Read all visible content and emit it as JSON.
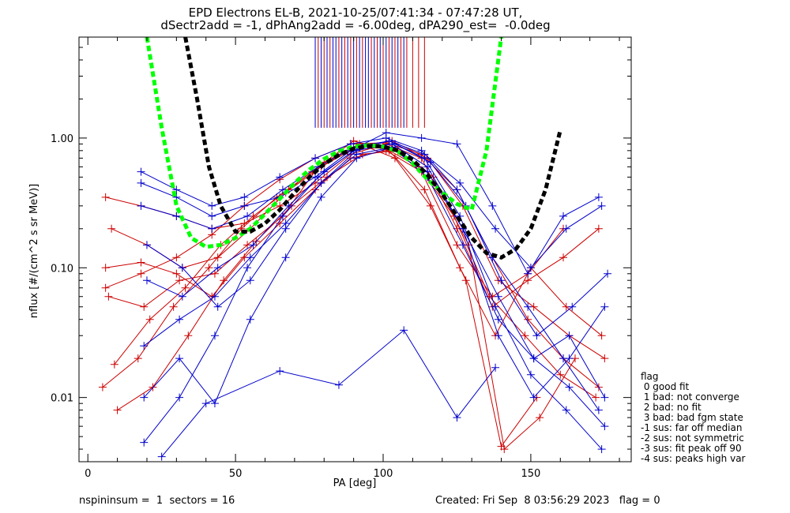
{
  "title_line1": "EPD Electrons EL-B, 2021-10-25/07:41:34 - 07:47:28 UT,",
  "title_line2": "dSectr2add = -1, dPhAng2add = -6.00deg, dPA290_est=  -0.0deg",
  "legend": {
    "title": "flag",
    "items": [
      " 0 good fit",
      " 1 bad: not converge",
      " 2 bad: no fit",
      " 3 bad: bad fgm state",
      "-1 sus: far off median",
      "-2 sus: not symmetric",
      "-3 sus: fit peak off 90",
      "-4 sus: peaks high var"
    ]
  },
  "footer": {
    "left": "nspininsum =  1  sectors = 16",
    "right": "Created: Fri Sep  8 03:56:29 2023   flag = 0"
  },
  "colors": {
    "series_red": "#cc0000",
    "series_blue": "#0000cc",
    "fit_green": "#00ff00",
    "fit_black": "#000000"
  },
  "chart_data": {
    "type": "line",
    "xlabel": "PA [deg]",
    "ylabel": "nflux [#/(cm^2 s sr MeV)]",
    "xlim": [
      -3,
      184
    ],
    "ylim": [
      0.0032,
      6.0
    ],
    "ylog": true,
    "xticks": [
      0,
      50,
      100,
      150
    ],
    "yticks": [
      0.01,
      0.1,
      1.0
    ],
    "ytick_labels": [
      "0.01",
      "0.10",
      "1.00"
    ],
    "grid": false,
    "legend_position": "right",
    "vertical_markers": {
      "blue": [
        77,
        79,
        81,
        83,
        84,
        86,
        88,
        90,
        92,
        94,
        95,
        97,
        99,
        101,
        103,
        105,
        107
      ],
      "red": [
        78,
        80,
        82,
        85,
        87,
        89,
        91,
        93,
        96,
        98,
        100,
        102,
        104,
        106,
        108,
        110,
        112,
        114
      ],
      "y_from": 1.2,
      "y_to": 6.0
    },
    "fits": [
      {
        "color": "green",
        "style": "dashed",
        "x": [
          20,
          25,
          30,
          35,
          40,
          45,
          50,
          55,
          60,
          65,
          70,
          75,
          80,
          85,
          90,
          95,
          100,
          105,
          110,
          115,
          120,
          125,
          130,
          135,
          140
        ],
        "y": [
          6.0,
          1.2,
          0.3,
          0.17,
          0.145,
          0.15,
          0.17,
          0.2,
          0.26,
          0.34,
          0.45,
          0.57,
          0.69,
          0.79,
          0.86,
          0.88,
          0.86,
          0.79,
          0.64,
          0.48,
          0.38,
          0.31,
          0.28,
          0.8,
          6.0
        ]
      },
      {
        "color": "black",
        "style": "dashed",
        "x": [
          33,
          37,
          41,
          45,
          50,
          55,
          60,
          65,
          70,
          75,
          80,
          85,
          90,
          95,
          100,
          105,
          110,
          115,
          120,
          125,
          130,
          135,
          140,
          145,
          150,
          155,
          160
        ],
        "y": [
          6.0,
          2.0,
          0.6,
          0.3,
          0.19,
          0.19,
          0.22,
          0.28,
          0.38,
          0.5,
          0.63,
          0.74,
          0.83,
          0.87,
          0.86,
          0.8,
          0.68,
          0.52,
          0.37,
          0.25,
          0.17,
          0.13,
          0.12,
          0.14,
          0.2,
          0.4,
          1.15
        ]
      }
    ],
    "series": [
      {
        "color": "red",
        "x": [
          6,
          18,
          30,
          42,
          53,
          65,
          77,
          89,
          101,
          113,
          125,
          137,
          149,
          161,
          173
        ],
        "y": [
          0.07,
          0.09,
          0.12,
          0.18,
          0.3,
          0.48,
          0.7,
          0.9,
          0.92,
          0.75,
          0.4,
          0.12,
          0.04,
          0.02,
          0.012
        ]
      },
      {
        "color": "red",
        "x": [
          8,
          20,
          32,
          44,
          55,
          67,
          79,
          91,
          103,
          115,
          127,
          139,
          151,
          163,
          175
        ],
        "y": [
          0.2,
          0.15,
          0.1,
          0.12,
          0.2,
          0.38,
          0.6,
          0.85,
          0.95,
          0.7,
          0.3,
          0.08,
          0.05,
          0.03,
          0.02
        ]
      },
      {
        "color": "red",
        "x": [
          5,
          17,
          29,
          41,
          52,
          64,
          76,
          88,
          100,
          112,
          124,
          136,
          148,
          160,
          172
        ],
        "y": [
          0.012,
          0.02,
          0.05,
          0.1,
          0.2,
          0.35,
          0.55,
          0.8,
          0.85,
          0.6,
          0.25,
          0.06,
          0.03,
          0.015,
          0.01
        ]
      },
      {
        "color": "red",
        "x": [
          10,
          22,
          34,
          46,
          57,
          69,
          81,
          93,
          105,
          117,
          129,
          141,
          153,
          165
        ],
        "y": [
          0.008,
          0.012,
          0.03,
          0.08,
          0.16,
          0.3,
          0.5,
          0.75,
          0.8,
          0.5,
          0.15,
          0.004,
          0.007,
          0.02
        ]
      },
      {
        "color": "red",
        "x": [
          6,
          18,
          30,
          42,
          53,
          65,
          77,
          89,
          101,
          113,
          125,
          137,
          149,
          161,
          173
        ],
        "y": [
          0.35,
          0.3,
          0.25,
          0.2,
          0.22,
          0.3,
          0.45,
          0.75,
          0.9,
          0.7,
          0.2,
          0.05,
          0.08,
          0.12,
          0.2
        ]
      },
      {
        "color": "red",
        "x": [
          7,
          19,
          31,
          43,
          54,
          66,
          78,
          90,
          102,
          114,
          126,
          138,
          150,
          162,
          174
        ],
        "y": [
          0.06,
          0.05,
          0.08,
          0.09,
          0.15,
          0.25,
          0.6,
          0.95,
          0.8,
          0.4,
          0.1,
          0.03,
          0.1,
          0.05,
          0.03
        ]
      },
      {
        "color": "red",
        "x": [
          9,
          21,
          33,
          45,
          56,
          68,
          80,
          92,
          104,
          116,
          128,
          140,
          152
        ],
        "y": [
          0.018,
          0.04,
          0.07,
          0.15,
          0.25,
          0.4,
          0.65,
          0.9,
          0.7,
          0.3,
          0.08,
          0.0042,
          0.01
        ]
      },
      {
        "color": "red",
        "x": [
          6,
          18,
          30,
          42,
          53,
          65,
          77,
          89,
          101,
          113,
          125,
          137,
          149,
          161
        ],
        "y": [
          0.1,
          0.11,
          0.09,
          0.06,
          0.12,
          0.22,
          0.4,
          0.7,
          0.8,
          0.55,
          0.15,
          0.06,
          0.09,
          0.2
        ]
      },
      {
        "color": "blue",
        "x": [
          18,
          30,
          42,
          53,
          65,
          77,
          89,
          101,
          113,
          125,
          137,
          149,
          161,
          173
        ],
        "y": [
          0.55,
          0.4,
          0.3,
          0.35,
          0.5,
          0.7,
          0.9,
          1.0,
          0.8,
          0.4,
          0.12,
          0.05,
          0.02,
          0.008
        ]
      },
      {
        "color": "blue",
        "x": [
          19,
          31,
          43,
          54,
          66,
          78,
          90,
          102,
          114,
          126,
          138,
          150,
          162,
          174
        ],
        "y": [
          0.0045,
          0.01,
          0.03,
          0.1,
          0.25,
          0.5,
          0.8,
          0.95,
          0.7,
          0.25,
          0.05,
          0.015,
          0.008,
          0.004
        ]
      },
      {
        "color": "blue",
        "x": [
          20,
          32,
          44,
          55,
          67,
          79,
          91,
          103,
          115,
          127,
          139,
          151,
          163,
          175
        ],
        "y": [
          0.15,
          0.1,
          0.05,
          0.08,
          0.2,
          0.45,
          0.8,
          0.9,
          0.6,
          0.2,
          0.03,
          0.01,
          0.02,
          0.05
        ]
      },
      {
        "color": "blue",
        "x": [
          18,
          30,
          42,
          54,
          66,
          78,
          90,
          102,
          114,
          126,
          138,
          150,
          162,
          174
        ],
        "y": [
          0.3,
          0.25,
          0.2,
          0.25,
          0.4,
          0.6,
          0.85,
          0.95,
          0.75,
          0.45,
          0.2,
          0.1,
          0.2,
          0.3
        ]
      },
      {
        "color": "blue",
        "x": [
          19,
          31,
          43,
          55,
          67,
          79,
          91,
          103,
          115,
          127,
          139,
          151,
          163,
          175
        ],
        "y": [
          0.01,
          0.02,
          0.009,
          0.04,
          0.12,
          0.35,
          0.7,
          0.85,
          0.5,
          0.15,
          0.04,
          0.02,
          0.03,
          0.01
        ]
      },
      {
        "color": "blue",
        "x": [
          20,
          32,
          44,
          56,
          68,
          80,
          92,
          104,
          116,
          128,
          140,
          152,
          164,
          176
        ],
        "y": [
          0.08,
          0.06,
          0.1,
          0.15,
          0.3,
          0.55,
          0.85,
          0.9,
          0.65,
          0.3,
          0.08,
          0.03,
          0.05,
          0.09
        ]
      },
      {
        "color": "blue",
        "x": [
          25,
          40,
          65,
          85,
          107,
          125,
          138
        ],
        "y": [
          0.0035,
          0.009,
          0.016,
          0.0125,
          0.033,
          0.007,
          0.017
        ]
      },
      {
        "color": "blue",
        "x": [
          18,
          30,
          42,
          53,
          65,
          77,
          89,
          101,
          113,
          125,
          137,
          149,
          161,
          173
        ],
        "y": [
          0.45,
          0.35,
          0.25,
          0.3,
          0.35,
          0.5,
          0.8,
          1.1,
          1.0,
          0.9,
          0.3,
          0.09,
          0.25,
          0.35
        ]
      },
      {
        "color": "blue",
        "x": [
          19,
          31,
          43,
          55,
          67,
          79,
          91,
          103,
          115,
          127,
          139,
          151,
          163,
          175
        ],
        "y": [
          0.025,
          0.04,
          0.06,
          0.12,
          0.22,
          0.45,
          0.75,
          0.85,
          0.55,
          0.2,
          0.06,
          0.02,
          0.012,
          0.006
        ]
      }
    ]
  }
}
